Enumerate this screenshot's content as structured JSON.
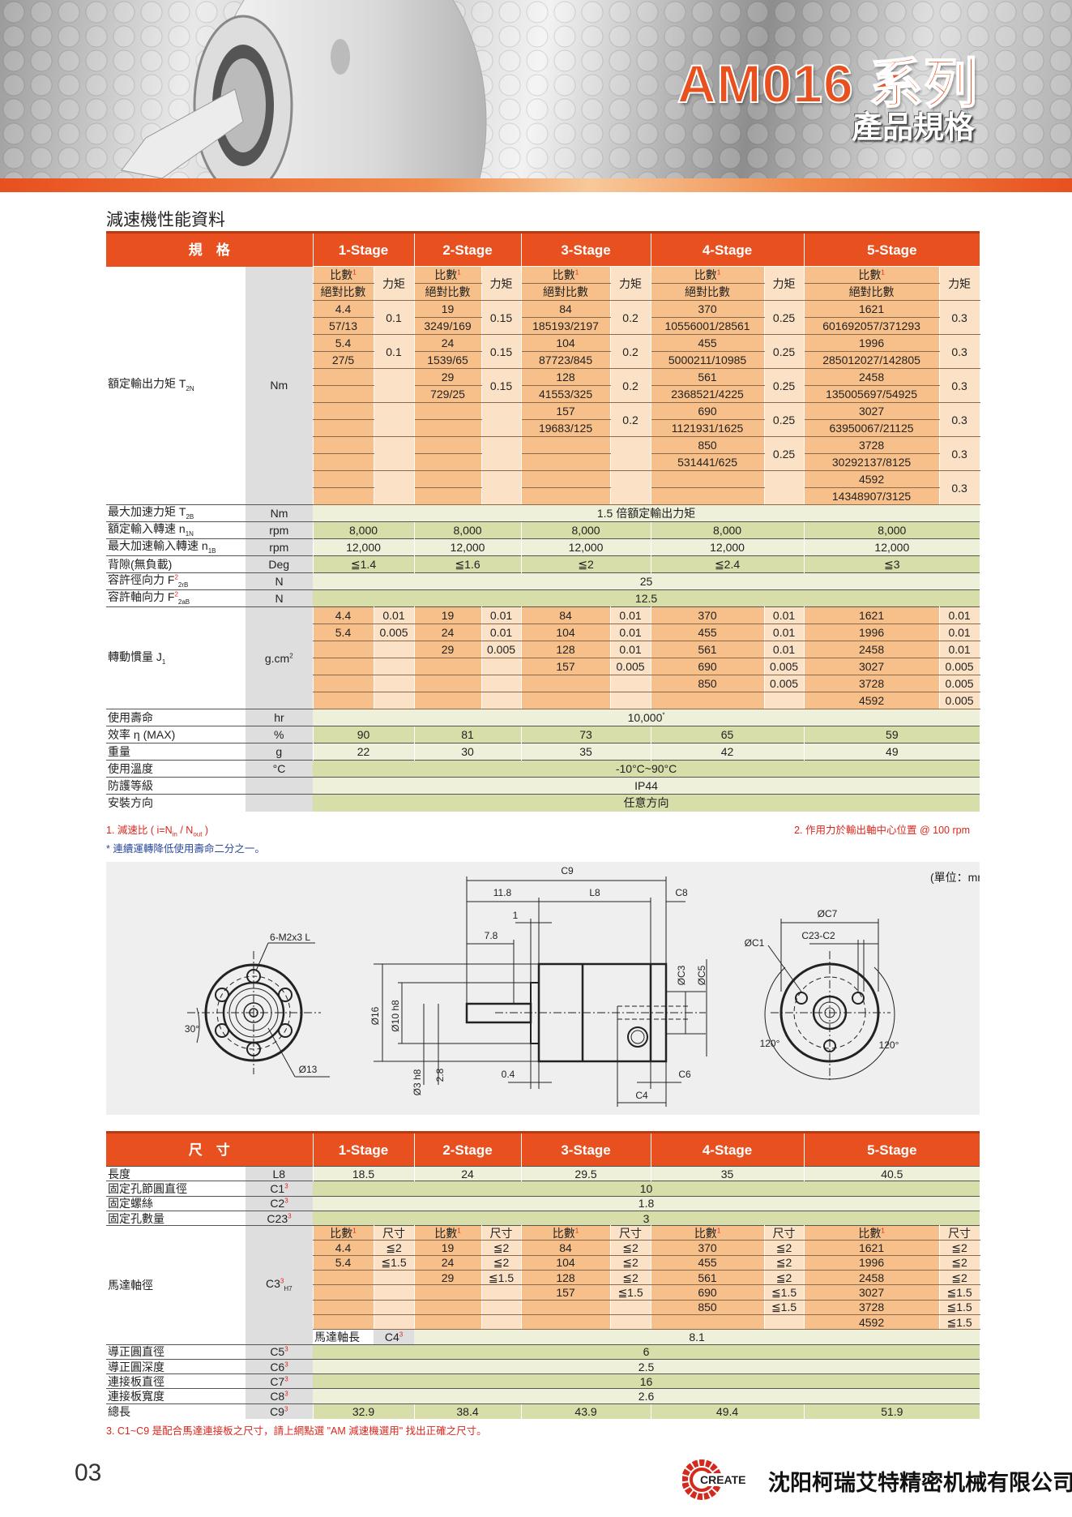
{
  "header": {
    "title": "AM016 系列",
    "subtitle": "產品規格",
    "section_title": "減速機性能資料"
  },
  "colors": {
    "accent": "#E8501F",
    "ratio_cell": "#F7C08A",
    "torque_cell": "#FBE2C6",
    "row_light": "#EEF0DA",
    "row_dark": "#D8DEA9",
    "unit_col": "#DEDEDE"
  },
  "spec_table": {
    "header_label": "規　格",
    "stages": [
      "1-Stage",
      "2-Stage",
      "3-Stage",
      "4-Stage",
      "5-Stage"
    ],
    "sub_headers": {
      "ratio": "比數",
      "ratio_sup": "1",
      "abs": "絕對比數",
      "torque": "力矩"
    },
    "rated_torque": {
      "label": {
        "text": "額定輸出力矩 T",
        "sub": "2N"
      },
      "unit": {
        "text": "Nm"
      },
      "stages": [
        [
          {
            "r": "4.4",
            "a": "57/13",
            "t": "0.1"
          },
          {
            "r": "5.4",
            "a": "27/5",
            "t": "0.1"
          }
        ],
        [
          {
            "r": "19",
            "a": "3249/169",
            "t": "0.15"
          },
          {
            "r": "24",
            "a": "1539/65",
            "t": "0.15"
          },
          {
            "r": "29",
            "a": "729/25",
            "t": "0.15"
          }
        ],
        [
          {
            "r": "84",
            "a": "185193/2197",
            "t": "0.2"
          },
          {
            "r": "104",
            "a": "87723/845",
            "t": "0.2"
          },
          {
            "r": "128",
            "a": "41553/325",
            "t": "0.2"
          },
          {
            "r": "157",
            "a": "19683/125",
            "t": "0.2"
          }
        ],
        [
          {
            "r": "370",
            "a": "10556001/28561",
            "t": "0.25"
          },
          {
            "r": "455",
            "a": "5000211/10985",
            "t": "0.25"
          },
          {
            "r": "561",
            "a": "2368521/4225",
            "t": "0.25"
          },
          {
            "r": "690",
            "a": "1121931/1625",
            "t": "0.25"
          },
          {
            "r": "850",
            "a": "531441/625",
            "t": "0.25"
          }
        ],
        [
          {
            "r": "1621",
            "a": "601692057/371293",
            "t": "0.3"
          },
          {
            "r": "1996",
            "a": "285012027/142805",
            "t": "0.3"
          },
          {
            "r": "2458",
            "a": "135005697/54925",
            "t": "0.3"
          },
          {
            "r": "3027",
            "a": "63950067/21125",
            "t": "0.3"
          },
          {
            "r": "3728",
            "a": "30292137/8125",
            "t": "0.3"
          },
          {
            "r": "4592",
            "a": "14348907/3125",
            "t": "0.3"
          }
        ]
      ]
    },
    "rows_before": [
      {
        "label": {
          "text": "最大加速力矩 T",
          "sub": "2B"
        },
        "unit": {
          "text": "Nm"
        },
        "span": {
          "text": "1.5 倍額定輸出力矩"
        }
      },
      {
        "label": {
          "text": "額定輸入轉速 n",
          "sub": "1N"
        },
        "unit": {
          "text": "rpm"
        },
        "values": [
          "8,000",
          "8,000",
          "8,000",
          "8,000",
          "8,000"
        ]
      },
      {
        "label": {
          "text": "最大加速輸入轉速 n",
          "sub": "1B"
        },
        "unit": {
          "text": "rpm"
        },
        "values": [
          "12,000",
          "12,000",
          "12,000",
          "12,000",
          "12,000"
        ]
      },
      {
        "label": {
          "text": "背隙(無負載)"
        },
        "unit": {
          "text": "Deg"
        },
        "values": [
          "≦1.4",
          "≦1.6",
          "≦2",
          "≦2.4",
          "≦3"
        ]
      },
      {
        "label": {
          "text": "容許徑向力 F",
          "sub": "2rB",
          "sup": "2"
        },
        "unit": {
          "text": "N"
        },
        "span": {
          "text": "25"
        }
      },
      {
        "label": {
          "text": "容許軸向力 F",
          "sub": "2aB",
          "sup": "2"
        },
        "unit": {
          "text": "N"
        },
        "span": {
          "text": "12.5"
        }
      }
    ],
    "inertia": {
      "label": {
        "text": "轉動慣量 J",
        "sub": "1"
      },
      "unit": {
        "text": "g.cm",
        "sup": "2"
      },
      "stages": [
        [
          [
            "4.4",
            "0.01"
          ],
          [
            "5.4",
            "0.005"
          ]
        ],
        [
          [
            "19",
            "0.01"
          ],
          [
            "24",
            "0.01"
          ],
          [
            "29",
            "0.005"
          ]
        ],
        [
          [
            "84",
            "0.01"
          ],
          [
            "104",
            "0.01"
          ],
          [
            "128",
            "0.01"
          ],
          [
            "157",
            "0.005"
          ]
        ],
        [
          [
            "370",
            "0.01"
          ],
          [
            "455",
            "0.01"
          ],
          [
            "561",
            "0.01"
          ],
          [
            "690",
            "0.005"
          ],
          [
            "850",
            "0.005"
          ]
        ],
        [
          [
            "1621",
            "0.01"
          ],
          [
            "1996",
            "0.01"
          ],
          [
            "2458",
            "0.01"
          ],
          [
            "3027",
            "0.005"
          ],
          [
            "3728",
            "0.005"
          ],
          [
            "4592",
            "0.005"
          ]
        ]
      ]
    },
    "rows_after": [
      {
        "label": {
          "text": "使用壽命"
        },
        "unit": {
          "text": "hr"
        },
        "span": {
          "text": "10,000",
          "sup": "*"
        }
      },
      {
        "label": {
          "text": "效率 η (MAX)"
        },
        "unit": {
          "text": "%"
        },
        "values": [
          "90",
          "81",
          "73",
          "65",
          "59"
        ]
      },
      {
        "label": {
          "text": "重量"
        },
        "unit": {
          "text": "g"
        },
        "values": [
          "22",
          "30",
          "35",
          "42",
          "49"
        ]
      },
      {
        "label": {
          "text": "使用溫度"
        },
        "unit": {
          "text": "°C"
        },
        "span": {
          "text": "-10°C~90°C"
        }
      },
      {
        "label": {
          "text": "防護等級"
        },
        "unit": {
          "text": ""
        },
        "span": {
          "text": "IP44"
        }
      },
      {
        "label": {
          "text": "安裝方向"
        },
        "unit": {
          "text": ""
        },
        "span": {
          "text": "任意方向"
        }
      }
    ]
  },
  "notes": {
    "note1": "1. 減速比 ( i=N",
    "note1_sub1": "in",
    "note1_mid": " / N",
    "note1_sub2": "out",
    "note1_end": " )",
    "note2": "2. 作用力於輸出軸中心位置 @ 100 rpm",
    "note_star": "* 連續運轉降低使用壽命二分之一。",
    "note3": "3. C1~C9 是配合馬達連接板之尺寸，請上網點選 \"AM 減速機選用\" 找出正確之尺寸。"
  },
  "diagram": {
    "unit": "(單位：mm)",
    "labels": {
      "c9": "C9",
      "d118": "11.8",
      "l8": "L8",
      "c8": "C8",
      "d1": "1",
      "d78": "7.8",
      "d16": "Ø16",
      "d10": "Ø10 h8",
      "d3": "Ø3 h8",
      "d28": "2.8",
      "d04": "0.4",
      "c6": "C6",
      "c4": "C4",
      "c3": "ØC3",
      "c5": "ØC5",
      "m2": "6-M2x3 L",
      "d13": "Ø13",
      "a30": "30°",
      "c7": "ØC7",
      "c23": "C23-C2",
      "c1": "ØC1",
      "a120l": "120°",
      "a120r": "120°"
    }
  },
  "dim_table": {
    "header_label": "尺　寸",
    "stages": [
      "1-Stage",
      "2-Stage",
      "3-Stage",
      "4-Stage",
      "5-Stage"
    ],
    "rows_before": [
      {
        "label": {
          "text": "長度"
        },
        "unit": {
          "text": "L8"
        },
        "values": [
          "18.5",
          "24",
          "29.5",
          "35",
          "40.5"
        ]
      },
      {
        "label": {
          "text": "固定孔節圓直徑"
        },
        "unit": {
          "text": "C1",
          "sup": "3"
        },
        "span": {
          "text": "10"
        }
      },
      {
        "label": {
          "text": "固定螺絲"
        },
        "unit": {
          "text": "C2",
          "sup": "3"
        },
        "span": {
          "text": "1.8"
        }
      },
      {
        "label": {
          "text": "固定孔數量"
        },
        "unit": {
          "text": "C23",
          "sup": "3"
        },
        "span": {
          "text": "3"
        }
      }
    ],
    "motor_shaft": {
      "label": {
        "text": "馬達軸徑"
      },
      "unit": {
        "text": "C3",
        "sup": "3",
        "sub": "H7"
      },
      "col_ratio": "比數",
      "col_ratio_sup": "1",
      "col_size": "尺寸",
      "stages": [
        [
          [
            "4.4",
            "≦2"
          ],
          [
            "5.4",
            "≦1.5"
          ]
        ],
        [
          [
            "19",
            "≦2"
          ],
          [
            "24",
            "≦2"
          ],
          [
            "29",
            "≦1.5"
          ]
        ],
        [
          [
            "84",
            "≦2"
          ],
          [
            "104",
            "≦2"
          ],
          [
            "128",
            "≦2"
          ],
          [
            "157",
            "≦1.5"
          ]
        ],
        [
          [
            "370",
            "≦2"
          ],
          [
            "455",
            "≦2"
          ],
          [
            "561",
            "≦2"
          ],
          [
            "690",
            "≦1.5"
          ],
          [
            "850",
            "≦1.5"
          ]
        ],
        [
          [
            "1621",
            "≦2"
          ],
          [
            "1996",
            "≦2"
          ],
          [
            "2458",
            "≦2"
          ],
          [
            "3027",
            "≦1.5"
          ],
          [
            "3728",
            "≦1.5"
          ],
          [
            "4592",
            "≦1.5"
          ]
        ]
      ]
    },
    "rows_after": [
      {
        "label": {
          "text": "馬達軸長"
        },
        "unit": {
          "text": "C4",
          "sup": "3"
        },
        "span": {
          "text": "8.1"
        }
      },
      {
        "label": {
          "text": "導正圓直徑"
        },
        "unit": {
          "text": "C5",
          "sup": "3"
        },
        "span": {
          "text": "6"
        }
      },
      {
        "label": {
          "text": "導正圓深度"
        },
        "unit": {
          "text": "C6",
          "sup": "3"
        },
        "span": {
          "text": "2.5"
        }
      },
      {
        "label": {
          "text": "連接板直徑"
        },
        "unit": {
          "text": "C7",
          "sup": "3"
        },
        "span": {
          "text": "16"
        }
      },
      {
        "label": {
          "text": "連接板寬度"
        },
        "unit": {
          "text": "C8",
          "sup": "3"
        },
        "span": {
          "text": "2.6"
        }
      },
      {
        "label": {
          "text": "總長"
        },
        "unit": {
          "text": "C9",
          "sup": "3"
        },
        "values": [
          "32.9",
          "38.4",
          "43.9",
          "49.4",
          "51.9"
        ]
      }
    ]
  },
  "footer": {
    "page_number": "03",
    "logo_text": "CREATE",
    "company": "沈阳柯瑞艾特精密机械有限公司"
  }
}
